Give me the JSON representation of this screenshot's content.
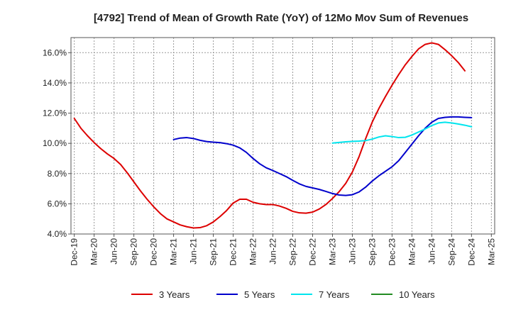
{
  "chart_data": {
    "type": "line",
    "title": "[4792]  Trend of Mean of Growth Rate (YoY) of 12Mo Mov Sum of Revenues",
    "xlabel": "",
    "ylabel": "",
    "ylim": [
      4.0,
      17.0
    ],
    "yticks": [
      4.0,
      6.0,
      8.0,
      10.0,
      12.0,
      14.0,
      16.0
    ],
    "ytick_labels": [
      "4.0%",
      "6.0%",
      "8.0%",
      "10.0%",
      "12.0%",
      "14.0%",
      "16.0%"
    ],
    "x_start": "Dec-19",
    "x_count": 64,
    "xtick_labels": [
      "Dec-19",
      "Mar-20",
      "Jun-20",
      "Sep-20",
      "Dec-20",
      "Mar-21",
      "Jun-21",
      "Sep-21",
      "Dec-21",
      "Mar-22",
      "Jun-22",
      "Sep-22",
      "Dec-22",
      "Mar-23",
      "Jun-23",
      "Sep-23",
      "Dec-23",
      "Mar-24",
      "Jun-24",
      "Sep-24",
      "Dec-24",
      "Mar-25"
    ],
    "grid": true,
    "legend_position": "bottom",
    "series": [
      {
        "name": "3 Years",
        "color": "#dd0000",
        "start_index": 0,
        "values": [
          11.65,
          11.0,
          10.5,
          10.05,
          9.65,
          9.3,
          9.0,
          8.6,
          8.05,
          7.45,
          6.85,
          6.3,
          5.8,
          5.35,
          5.0,
          4.8,
          4.6,
          4.48,
          4.4,
          4.42,
          4.55,
          4.8,
          5.15,
          5.55,
          6.05,
          6.3,
          6.3,
          6.1,
          6.0,
          5.95,
          5.95,
          5.85,
          5.7,
          5.5,
          5.4,
          5.38,
          5.45,
          5.65,
          5.95,
          6.35,
          6.8,
          7.35,
          8.1,
          9.1,
          10.3,
          11.4,
          12.3,
          13.1,
          13.85,
          14.55,
          15.2,
          15.75,
          16.25,
          16.55,
          16.65,
          16.55,
          16.2,
          15.8,
          15.35,
          14.8
        ]
      },
      {
        "name": "5 Years",
        "color": "#0000cc",
        "start_index": 15,
        "values": [
          10.25,
          10.35,
          10.38,
          10.32,
          10.2,
          10.12,
          10.08,
          10.05,
          9.98,
          9.88,
          9.7,
          9.4,
          9.0,
          8.65,
          8.38,
          8.2,
          8.0,
          7.8,
          7.55,
          7.32,
          7.15,
          7.05,
          6.95,
          6.82,
          6.68,
          6.58,
          6.55,
          6.6,
          6.78,
          7.1,
          7.5,
          7.85,
          8.15,
          8.45,
          8.85,
          9.4,
          9.95,
          10.5,
          11.0,
          11.4,
          11.65,
          11.72,
          11.75,
          11.75,
          11.72,
          11.7
        ]
      },
      {
        "name": "7 Years",
        "color": "#00e5ee",
        "start_index": 39,
        "values": [
          10.02,
          10.06,
          10.1,
          10.13,
          10.15,
          10.18,
          10.28,
          10.42,
          10.5,
          10.45,
          10.38,
          10.4,
          10.55,
          10.75,
          10.95,
          11.18,
          11.35,
          11.4,
          11.35,
          11.28,
          11.2,
          11.1
        ]
      },
      {
        "name": "10 Years",
        "color": "#228b22",
        "start_index": 0,
        "values": []
      }
    ]
  }
}
